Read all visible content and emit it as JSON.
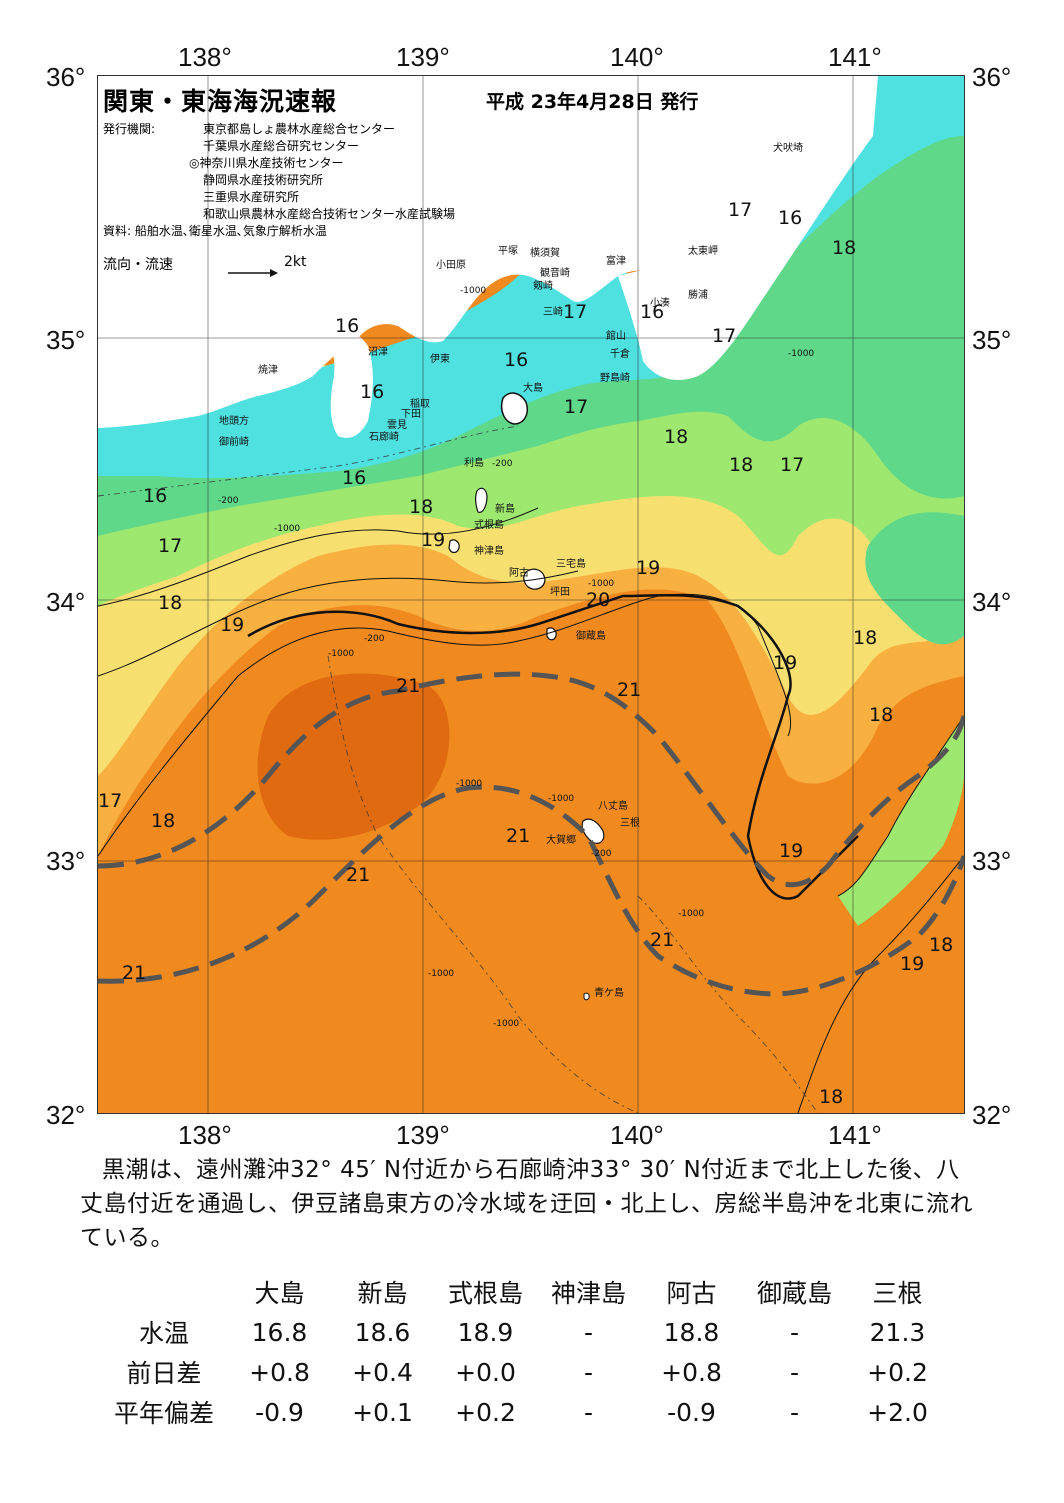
{
  "header": {
    "title": "関東・東海海況速報",
    "date": "平成 23年4月28日 発行",
    "issuer_label": "発行機関:",
    "issuers": [
      "東京都島しょ農林水産総合センター",
      "千葉県水産総合研究センター",
      "◎神奈川県水産技術センター",
      "静岡県水産技術研究所",
      "三重県水産研究所",
      "和歌山県農林水産総合技術センター水産試験場"
    ],
    "sources": "資料: 船舶水温､衛星水温､気象庁解析水温",
    "flow_label": "流向・流速",
    "flow_scale": "2kt"
  },
  "axes": {
    "lon_labels": [
      "138°",
      "139°",
      "140°",
      "141°"
    ],
    "lat_labels": [
      "36°",
      "35°",
      "34°",
      "33°",
      "32°"
    ]
  },
  "place_names": [
    {
      "name": "犬吠埼"
    },
    {
      "name": "太東岬"
    },
    {
      "name": "勝浦"
    },
    {
      "name": "小湊"
    },
    {
      "name": "富津"
    },
    {
      "name": "横須賀"
    },
    {
      "name": "観音崎"
    },
    {
      "name": "平塚"
    },
    {
      "name": "小田原"
    },
    {
      "name": "剱崎"
    },
    {
      "name": "三崎"
    },
    {
      "name": "館山"
    },
    {
      "name": "千倉"
    },
    {
      "name": "野島崎"
    },
    {
      "name": "沼津"
    },
    {
      "name": "伊東"
    },
    {
      "name": "焼津"
    },
    {
      "name": "稲取"
    },
    {
      "name": "下田"
    },
    {
      "name": "雲見"
    },
    {
      "name": "石廊崎"
    },
    {
      "name": "地頭方"
    },
    {
      "name": "御前崎"
    },
    {
      "name": "大島"
    },
    {
      "name": "利島"
    },
    {
      "name": "新島"
    },
    {
      "name": "式根島"
    },
    {
      "name": "神津島"
    },
    {
      "name": "三宅島"
    },
    {
      "name": "阿古"
    },
    {
      "name": "坪田"
    },
    {
      "name": "御蔵島"
    },
    {
      "name": "八丈島"
    },
    {
      "name": "三根"
    },
    {
      "name": "大賀郷"
    },
    {
      "name": "青ケ島"
    }
  ],
  "isotherm_labels": [
    "16",
    "17",
    "18",
    "19",
    "20",
    "21"
  ],
  "depth_labels": [
    "-200",
    "-1000"
  ],
  "colors": {
    "c16": "#4fe0e0",
    "c17": "#5fd88a",
    "c18": "#9ee870",
    "c19": "#f8e070",
    "c20": "#f8b040",
    "c21": "#f08a1e",
    "c22": "#e06a10",
    "land": "#ffffff",
    "kuroshio_axis": "#555555"
  },
  "summary": "黒潮は、遠州灘沖32° 45′ N付近から石廊崎沖33° 30′ N付近まで北上した後、八丈島付近を通過し、伊豆諸島東方の冷水域を迂回・北上し、房総半島沖を北東に流れている。",
  "table": {
    "stations": [
      "大島",
      "新島",
      "式根島",
      "神津島",
      "阿古",
      "御蔵島",
      "三根"
    ],
    "rows": [
      {
        "label": "水温",
        "values": [
          "16.8",
          "18.6",
          "18.9",
          "-",
          "18.8",
          "-",
          "21.3"
        ]
      },
      {
        "label": "前日差",
        "values": [
          "+0.8",
          "+0.4",
          "+0.0",
          "-",
          "+0.8",
          "-",
          "+0.2"
        ]
      },
      {
        "label": "平年偏差",
        "values": [
          "-0.9",
          "+0.1",
          "+0.2",
          "-",
          "-0.9",
          "-",
          "+2.0"
        ]
      }
    ]
  }
}
